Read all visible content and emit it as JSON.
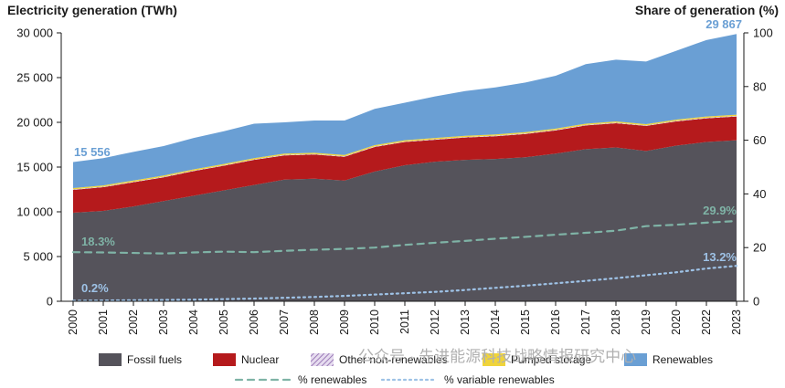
{
  "chart_data": {
    "type": "area",
    "left_axis_title": "Electricity generation (TWh)",
    "right_axis_title": "Share of generation (%)",
    "x": [
      "2000",
      "2001",
      "2002",
      "2003",
      "2004",
      "2005",
      "2006",
      "2007",
      "2008",
      "2009",
      "2010",
      "2011",
      "2012",
      "2013",
      "2014",
      "2015",
      "2016",
      "2017",
      "2018",
      "2019",
      "2020",
      "2022",
      "2023"
    ],
    "ylim_left": [
      0,
      30000
    ],
    "yticks_left": [
      0,
      5000,
      10000,
      15000,
      20000,
      25000,
      30000
    ],
    "yticks_left_labels": [
      "0",
      "5 000",
      "10 000",
      "15 000",
      "20 000",
      "25 000",
      "30 000"
    ],
    "ylim_right": [
      0,
      100
    ],
    "yticks_right": [
      0,
      20,
      40,
      60,
      80,
      100
    ],
    "series": [
      {
        "name": "Fossil fuels",
        "kind": "stacked_area",
        "color": "#55535b",
        "values": [
          9900,
          10100,
          10600,
          11200,
          11800,
          12400,
          13000,
          13600,
          13700,
          13500,
          14500,
          15200,
          15600,
          15800,
          15900,
          16100,
          16500,
          17000,
          17200,
          16800,
          17400,
          17800,
          18000
        ]
      },
      {
        "name": "Nuclear",
        "kind": "stacked_area",
        "color": "#b51a1c",
        "values": [
          2550,
          2650,
          2700,
          2650,
          2750,
          2750,
          2800,
          2700,
          2700,
          2650,
          2750,
          2600,
          2450,
          2500,
          2550,
          2600,
          2600,
          2650,
          2700,
          2800,
          2700,
          2650,
          2650
        ]
      },
      {
        "name": "Other non-renewables",
        "kind": "stacked_area",
        "color": "#c9b3d8",
        "values": [
          60,
          60,
          60,
          60,
          60,
          60,
          60,
          60,
          60,
          60,
          60,
          60,
          60,
          60,
          60,
          60,
          60,
          60,
          60,
          60,
          60,
          60,
          60
        ]
      },
      {
        "name": "Pumped storage",
        "kind": "stacked_area",
        "color": "#f0d43a",
        "values": [
          140,
          140,
          140,
          140,
          140,
          140,
          140,
          140,
          140,
          140,
          140,
          140,
          140,
          140,
          140,
          140,
          140,
          140,
          140,
          140,
          140,
          140,
          140
        ]
      },
      {
        "name": "Renewables",
        "kind": "stacked_area",
        "color": "#6a9fd4",
        "values": [
          2906,
          3050,
          3200,
          3300,
          3500,
          3650,
          3850,
          3500,
          3600,
          3850,
          4050,
          4200,
          4650,
          5000,
          5250,
          5550,
          5900,
          6650,
          6900,
          7000,
          7700,
          8550,
          9017
        ]
      },
      {
        "name": "% renewables",
        "kind": "line_right",
        "style": "dashed",
        "color": "#7fb3a6",
        "values": [
          18.3,
          18.2,
          18.0,
          17.8,
          18.2,
          18.5,
          18.3,
          18.8,
          19.2,
          19.5,
          20.0,
          21.0,
          21.8,
          22.5,
          23.3,
          24.0,
          24.8,
          25.5,
          26.3,
          28.0,
          28.5,
          29.3,
          29.9
        ]
      },
      {
        "name": "% variable renewables",
        "kind": "line_right",
        "style": "dotted",
        "color": "#9ec2e6",
        "values": [
          0.2,
          0.3,
          0.4,
          0.5,
          0.6,
          0.8,
          1.0,
          1.3,
          1.6,
          2.0,
          2.5,
          3.0,
          3.5,
          4.2,
          5.0,
          5.8,
          6.7,
          7.6,
          8.6,
          9.7,
          10.8,
          12.2,
          13.2
        ]
      }
    ],
    "annotations": {
      "start_total": "15 556",
      "end_total": "29 867",
      "pct_renewables_start": "18.3%",
      "pct_renewables_end": "29.9%",
      "pct_variable_start": "0.2%",
      "pct_variable_end": "13.2%"
    },
    "legend_placement": "bottom"
  },
  "watermark": "公众号 · 先进能源科技战略情报研究中心",
  "colors": {
    "annotation_blue": "#6a9fd4",
    "annotation_teal": "#7fb3a6",
    "axis": "#1a1a1a"
  }
}
